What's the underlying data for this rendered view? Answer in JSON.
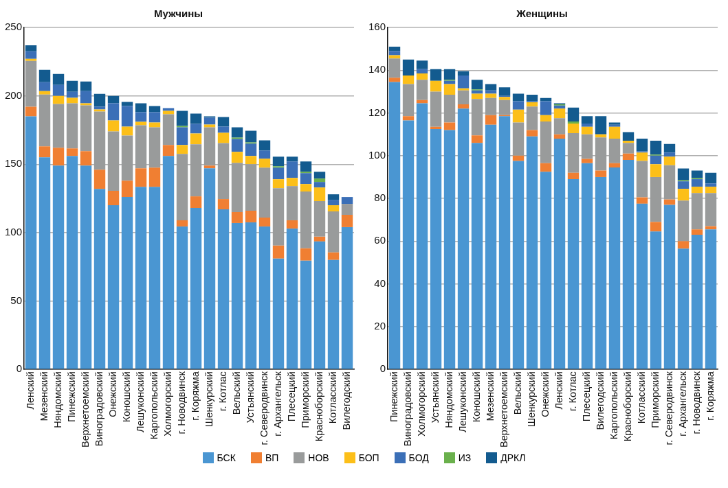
{
  "chart_data": [
    {
      "type": "bar",
      "title": "Мужчины",
      "stacked": true,
      "grid": "y",
      "legend": "bottom",
      "ylim": [
        0,
        250
      ],
      "yticks": [
        0,
        50,
        100,
        150,
        200,
        250
      ],
      "categories": [
        "Ленский",
        "Мезенский",
        "Няндомский",
        "Пинежский",
        "Верхнетоемский",
        "Виноградовский",
        "Онежский",
        "Коношский",
        "Лешуконский",
        "Каргопольский",
        "Холмогорский",
        "г. Новодвинск",
        "г. Коряжма",
        "Шенкурский",
        "г. Котлас",
        "Вельский",
        "Устьянский",
        "г. Северодвинск",
        "г. Архангельск",
        "Плесецкий",
        "Приморский",
        "Красноборский",
        "Котласский",
        "Вилегодский"
      ],
      "series": [
        {
          "name": "БСК",
          "color": "#4a96d2",
          "values": [
            185,
            155,
            149,
            156,
            149,
            132,
            120,
            126,
            133.5,
            133.5,
            156,
            104.5,
            118,
            147,
            117,
            107,
            107.5,
            104.5,
            81,
            103,
            79.5,
            93.5,
            80,
            104
          ]
        },
        {
          "name": "ВП",
          "color": "#f07f32",
          "values": [
            7,
            8,
            13,
            5.5,
            10.5,
            14,
            10.5,
            12,
            13.5,
            14,
            8,
            4.5,
            8.5,
            2,
            7.5,
            8,
            8.5,
            6.5,
            9.5,
            6,
            9,
            3.5,
            5.5,
            9
          ]
        },
        {
          "name": "НОВ",
          "color": "#999b9b",
          "values": [
            33.5,
            38,
            32,
            33,
            33.5,
            42.5,
            43.5,
            33,
            31.5,
            29.5,
            22.5,
            48.5,
            38,
            28,
            41,
            36,
            34,
            36.5,
            42,
            25,
            41.5,
            26,
            30,
            8
          ]
        },
        {
          "name": "БОП",
          "color": "#fcbf19",
          "values": [
            1.5,
            2.5,
            6,
            4,
            1.5,
            1.5,
            8,
            6.5,
            2.5,
            3.5,
            2.5,
            6.5,
            8,
            2,
            7.5,
            8,
            6,
            6.5,
            6.5,
            6,
            5.5,
            10,
            4.5,
            0
          ]
        },
        {
          "name": "БОД",
          "color": "#3b6fb7",
          "values": [
            5.5,
            6.5,
            8,
            4.5,
            9,
            2,
            12.5,
            15,
            7,
            7.5,
            2,
            13,
            7,
            5,
            4.5,
            9.5,
            9,
            6,
            8.5,
            12,
            8,
            4,
            4,
            5
          ]
        },
        {
          "name": "ИЗ",
          "color": "#6ab04c",
          "values": [
            0,
            0,
            0,
            0,
            0,
            0,
            0,
            0,
            0,
            0,
            0,
            1,
            0,
            0,
            0,
            1,
            1,
            0,
            1,
            0,
            1,
            2.5,
            0,
            0
          ]
        },
        {
          "name": "ДРКЛ",
          "color": "#135b8f",
          "values": [
            4.5,
            9,
            8,
            8,
            7,
            9.5,
            5.5,
            3,
            6.5,
            4.5,
            0,
            11,
            7.5,
            1,
            7,
            7.5,
            8.5,
            7.5,
            7,
            3.5,
            7.5,
            5,
            4,
            0
          ]
        }
      ]
    },
    {
      "type": "bar",
      "title": "Женщины",
      "stacked": true,
      "grid": "y",
      "ylim": [
        0,
        160
      ],
      "yticks": [
        0,
        20,
        40,
        60,
        80,
        100,
        120,
        140,
        160
      ],
      "categories": [
        "Пинежский",
        "Виноградовский",
        "Холмогорский",
        "Устьянский",
        "Няндомский",
        "Лешуконский",
        "Коношский",
        "Мезенский",
        "Верхнетоемский",
        "Вельский",
        "Шенкурский",
        "Онежский",
        "Ленский",
        "г. Котлас",
        "Плесецкий",
        "Вилегодский",
        "Каргопольский",
        "Красноборский",
        "Котласский",
        "Приморский",
        "г. Северодвинск",
        "г. Архангельск",
        "г. Новодвинск",
        "г. Коряжма"
      ],
      "series": [
        {
          "color": "#4a96d2",
          "values": [
            134.5,
            116.5,
            124.5,
            112.5,
            112,
            122,
            106,
            114.5,
            118.5,
            97.5,
            109,
            92.5,
            108,
            89,
            96.5,
            90,
            94.5,
            98,
            77.5,
            64.5,
            77,
            56.5,
            63,
            65.5
          ]
        },
        {
          "color": "#f07f32",
          "values": [
            2,
            2,
            1.5,
            1,
            3.5,
            2,
            3.5,
            4.5,
            0.5,
            2.5,
            3,
            4,
            2,
            3,
            2,
            3,
            2,
            3,
            3,
            4.5,
            2.5,
            3.5,
            2.5,
            1.5
          ]
        },
        {
          "color": "#999b9b",
          "values": [
            9,
            15,
            9.5,
            16.5,
            13,
            6.5,
            17,
            8,
            7,
            15.5,
            11,
            19.5,
            7.5,
            18.5,
            11.5,
            15.5,
            11.5,
            5,
            17,
            21,
            16,
            19,
            17,
            15.5
          ]
        },
        {
          "color": "#fcbf19",
          "values": [
            1.5,
            4,
            3,
            5,
            5,
            1,
            2.5,
            2,
            1.5,
            6,
            2,
            3,
            4.5,
            4.5,
            3.5,
            1.5,
            5.5,
            1,
            4,
            6,
            4,
            5.5,
            3,
            3
          ]
        },
        {
          "color": "#3b6fb7",
          "values": [
            2,
            0,
            2,
            0,
            1.5,
            6,
            1.5,
            1.5,
            0.5,
            4,
            0.5,
            6.5,
            1.5,
            0,
            1.5,
            0,
            1,
            0,
            0.5,
            4,
            2,
            3.5,
            3.5,
            1.5
          ]
        },
        {
          "color": "#6ab04c",
          "values": [
            0,
            0,
            0,
            0,
            0.5,
            0,
            0.5,
            0,
            0,
            0,
            0,
            0,
            0.5,
            1,
            0,
            0,
            0,
            0,
            0,
            0.5,
            0,
            0.5,
            0.5,
            0
          ]
        },
        {
          "color": "#135b8f",
          "values": [
            2,
            7.5,
            4,
            5.5,
            5,
            2,
            4.5,
            3,
            4,
            3.5,
            3,
            1.5,
            0.5,
            6.5,
            3.5,
            8.5,
            1,
            4,
            6,
            6.5,
            4,
            5.5,
            3.5,
            5
          ]
        }
      ]
    }
  ]
}
